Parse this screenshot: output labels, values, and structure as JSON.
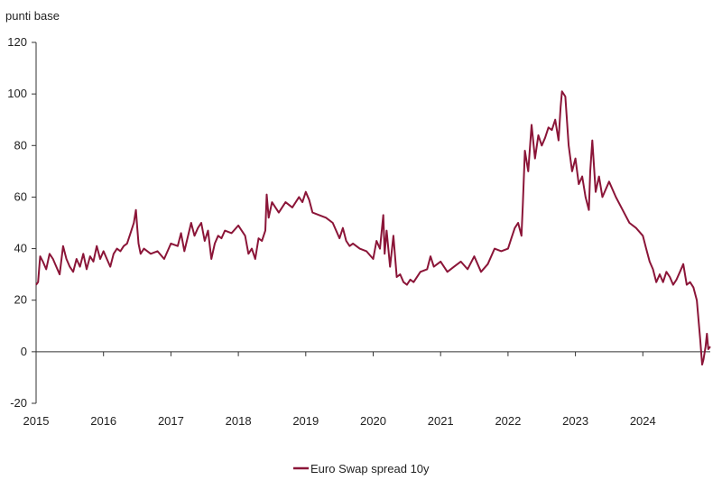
{
  "chart_data": {
    "type": "line",
    "title": "",
    "ylabel": "punti base",
    "xlabel": "",
    "ylim": [
      -20,
      120
    ],
    "yticks": [
      -20,
      0,
      20,
      40,
      60,
      80,
      100,
      120
    ],
    "xlim": [
      2015,
      2025
    ],
    "xticks": [
      2015,
      2016,
      2017,
      2018,
      2019,
      2020,
      2021,
      2022,
      2023,
      2024
    ],
    "grid": false,
    "legend": "bottom-center",
    "series": [
      {
        "name": "Euro Swap spread 10y",
        "color": "#8b1538",
        "x": [
          2015.0,
          2015.03,
          2015.06,
          2015.1,
          2015.15,
          2015.2,
          2015.25,
          2015.3,
          2015.35,
          2015.4,
          2015.45,
          2015.5,
          2015.55,
          2015.6,
          2015.65,
          2015.7,
          2015.75,
          2015.8,
          2015.85,
          2015.9,
          2015.95,
          2016.0,
          2016.05,
          2016.1,
          2016.15,
          2016.2,
          2016.25,
          2016.3,
          2016.35,
          2016.4,
          2016.45,
          2016.48,
          2016.5,
          2016.52,
          2016.55,
          2016.6,
          2016.7,
          2016.8,
          2016.9,
          2017.0,
          2017.1,
          2017.15,
          2017.2,
          2017.3,
          2017.35,
          2017.4,
          2017.45,
          2017.5,
          2017.55,
          2017.6,
          2017.65,
          2017.7,
          2017.75,
          2017.8,
          2017.9,
          2018.0,
          2018.05,
          2018.1,
          2018.15,
          2018.2,
          2018.25,
          2018.3,
          2018.35,
          2018.4,
          2018.42,
          2018.45,
          2018.5,
          2018.55,
          2018.6,
          2018.7,
          2018.8,
          2018.9,
          2018.95,
          2019.0,
          2019.05,
          2019.1,
          2019.2,
          2019.3,
          2019.4,
          2019.5,
          2019.55,
          2019.6,
          2019.65,
          2019.7,
          2019.8,
          2019.9,
          2020.0,
          2020.05,
          2020.1,
          2020.15,
          2020.17,
          2020.2,
          2020.25,
          2020.3,
          2020.35,
          2020.4,
          2020.45,
          2020.5,
          2020.55,
          2020.6,
          2020.7,
          2020.8,
          2020.85,
          2020.9,
          2021.0,
          2021.1,
          2021.2,
          2021.3,
          2021.4,
          2021.5,
          2021.6,
          2021.7,
          2021.8,
          2021.9,
          2022.0,
          2022.05,
          2022.1,
          2022.15,
          2022.2,
          2022.22,
          2022.25,
          2022.3,
          2022.35,
          2022.4,
          2022.45,
          2022.5,
          2022.55,
          2022.6,
          2022.65,
          2022.7,
          2022.75,
          2022.78,
          2022.8,
          2022.85,
          2022.9,
          2022.95,
          2023.0,
          2023.05,
          2023.1,
          2023.15,
          2023.2,
          2023.22,
          2023.25,
          2023.3,
          2023.35,
          2023.4,
          2023.5,
          2023.6,
          2023.7,
          2023.8,
          2023.9,
          2024.0,
          2024.05,
          2024.1,
          2024.15,
          2024.2,
          2024.25,
          2024.3,
          2024.35,
          2024.4,
          2024.45,
          2024.5,
          2024.55,
          2024.6,
          2024.65,
          2024.7,
          2024.75,
          2024.8,
          2024.85,
          2024.88,
          2024.9,
          2024.93,
          2024.95,
          2024.97,
          2025.0
        ],
        "y": [
          26,
          27,
          37,
          35,
          32,
          38,
          36,
          33,
          30,
          41,
          36,
          33,
          31,
          36,
          33,
          38,
          32,
          37,
          35,
          41,
          36,
          39,
          36,
          33,
          38,
          40,
          39,
          41,
          42,
          46,
          50,
          55,
          48,
          42,
          38,
          40,
          38,
          39,
          36,
          42,
          41,
          46,
          39,
          50,
          45,
          48,
          50,
          43,
          47,
          36,
          42,
          45,
          44,
          47,
          46,
          49,
          47,
          45,
          38,
          40,
          36,
          44,
          43,
          47,
          61,
          52,
          58,
          56,
          54,
          58,
          56,
          60,
          58,
          62,
          59,
          54,
          53,
          52,
          50,
          44,
          48,
          43,
          41,
          42,
          40,
          39,
          36,
          43,
          40,
          53,
          38,
          47,
          33,
          45,
          29,
          30,
          27,
          26,
          28,
          27,
          31,
          32,
          37,
          33,
          35,
          31,
          33,
          35,
          32,
          37,
          31,
          34,
          40,
          39,
          40,
          44,
          48,
          50,
          45,
          57,
          78,
          70,
          88,
          75,
          84,
          80,
          83,
          87,
          86,
          90,
          82,
          95,
          101,
          99,
          80,
          70,
          75,
          65,
          68,
          60,
          55,
          70,
          82,
          62,
          68,
          60,
          66,
          60,
          55,
          50,
          48,
          45,
          40,
          35,
          32,
          27,
          30,
          27,
          31,
          29,
          26,
          28,
          31,
          34,
          26,
          27,
          25,
          20,
          5,
          -5,
          -3,
          2,
          7,
          1,
          2
        ]
      }
    ]
  }
}
